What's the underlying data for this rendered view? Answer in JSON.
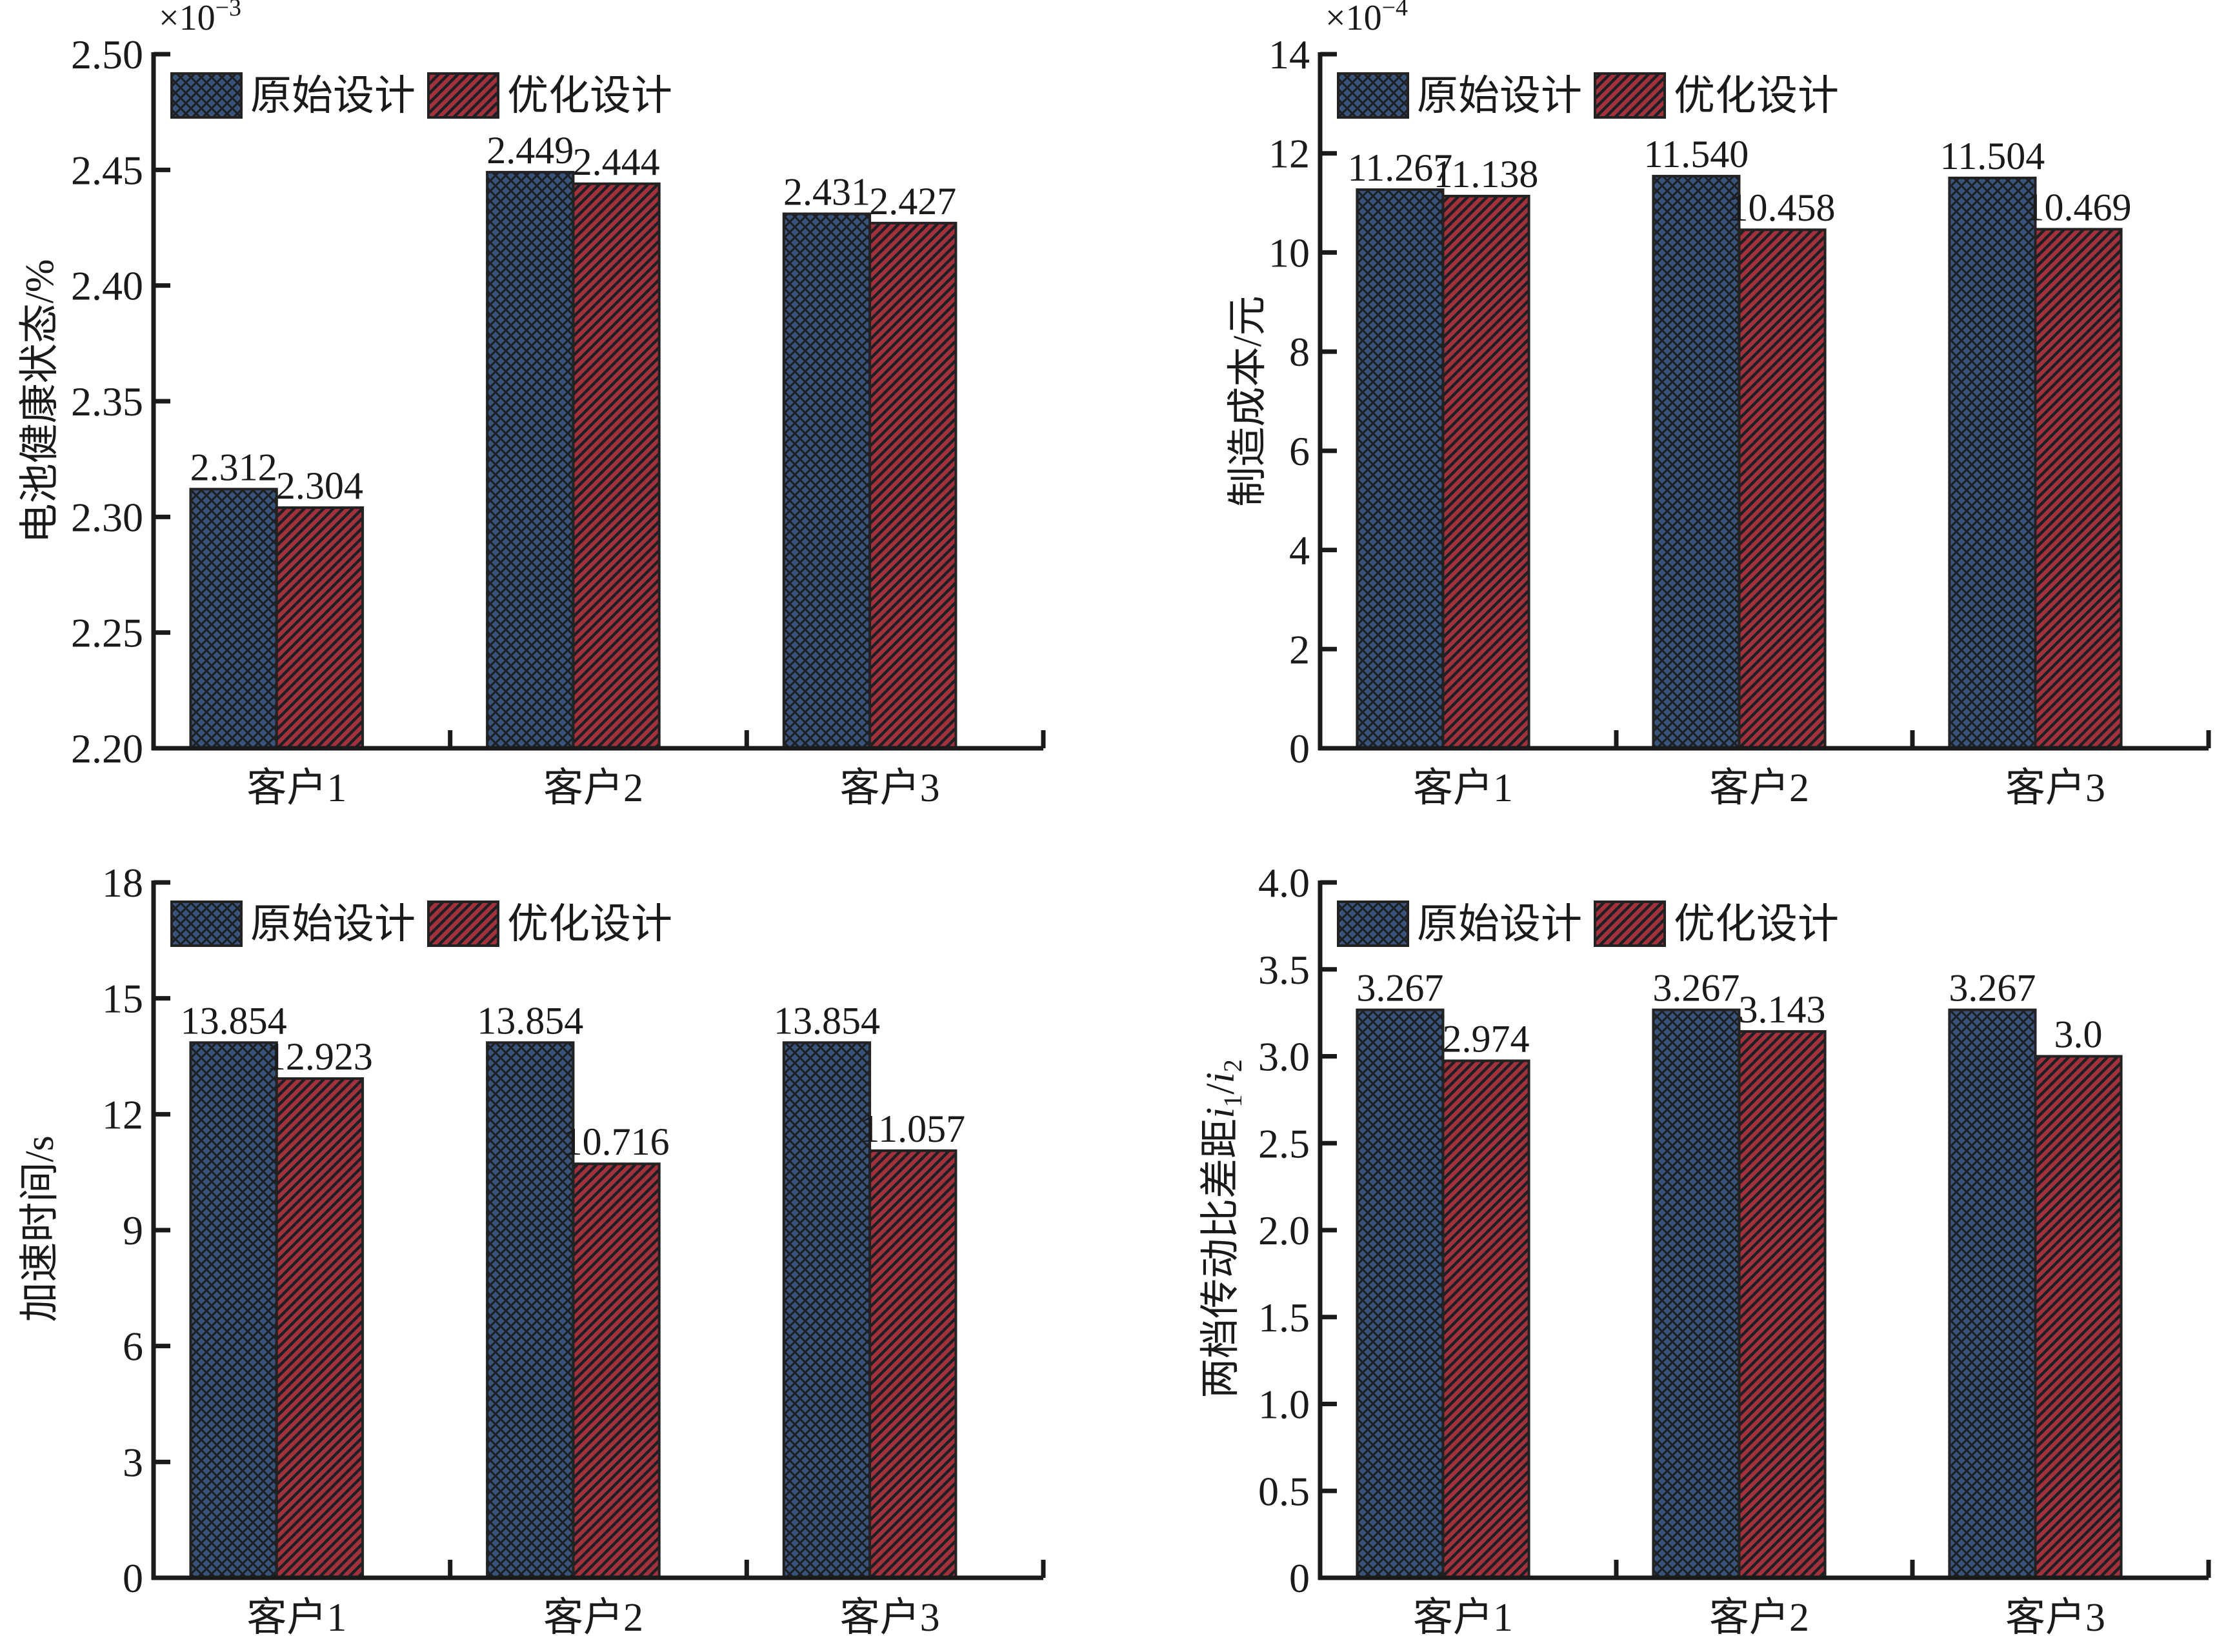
{
  "legend": {
    "original": "原始设计",
    "optimized": "优化设计"
  },
  "colors": {
    "original_fill": "#3a5378",
    "original_hatch": "#1c1f24",
    "optimized_fill": "#a3313c",
    "optimized_hatch": "#1c1f24",
    "axis": "#1a1a1a"
  },
  "chart_data": [
    {
      "type": "bar",
      "panel": "top-left",
      "title": "",
      "ylabel": "电池健康状态/%",
      "xlabel": "",
      "multiplier": "×10",
      "multiplier_exp": "-3",
      "categories": [
        "客户1",
        "客户2",
        "客户3"
      ],
      "ylim": [
        2.2,
        2.5
      ],
      "yticks": [
        2.2,
        2.25,
        2.3,
        2.35,
        2.4,
        2.45,
        2.5
      ],
      "ytick_labels": [
        "2.20",
        "2.25",
        "2.30",
        "2.35",
        "2.40",
        "2.45",
        "2.50"
      ],
      "series": [
        {
          "name": "原始设计",
          "values": [
            2.312,
            2.449,
            2.431
          ],
          "labels": [
            "2.312",
            "2.449",
            "2.431"
          ]
        },
        {
          "name": "优化设计",
          "values": [
            2.304,
            2.444,
            2.427
          ],
          "labels": [
            "2.304",
            "2.444",
            "2.427"
          ]
        }
      ],
      "legend_position": "top-left",
      "grid": false
    },
    {
      "type": "bar",
      "panel": "top-right",
      "title": "",
      "ylabel": "制造成本/元",
      "xlabel": "",
      "multiplier": "×10",
      "multiplier_exp": "-4",
      "categories": [
        "客户1",
        "客户2",
        "客户3"
      ],
      "ylim": [
        0,
        14
      ],
      "yticks": [
        0,
        2,
        4,
        6,
        8,
        10,
        12,
        14
      ],
      "ytick_labels": [
        "0",
        "2",
        "4",
        "6",
        "8",
        "10",
        "12",
        "14"
      ],
      "series": [
        {
          "name": "原始设计",
          "values": [
            11.267,
            11.54,
            11.504
          ],
          "labels": [
            "11.267",
            "11.540",
            "11.504"
          ]
        },
        {
          "name": "优化设计",
          "values": [
            11.138,
            10.458,
            10.469
          ],
          "labels": [
            "11.138",
            "10.458",
            "10.469"
          ]
        }
      ],
      "legend_position": "top-left",
      "grid": false
    },
    {
      "type": "bar",
      "panel": "bottom-left",
      "title": "",
      "ylabel": "加速时间/s",
      "xlabel": "",
      "multiplier": "",
      "multiplier_exp": "",
      "categories": [
        "客户1",
        "客户2",
        "客户3"
      ],
      "ylim": [
        0,
        18
      ],
      "yticks": [
        0,
        3,
        6,
        9,
        12,
        15,
        18
      ],
      "ytick_labels": [
        "0",
        "3",
        "6",
        "9",
        "12",
        "15",
        "18"
      ],
      "series": [
        {
          "name": "原始设计",
          "values": [
            13.854,
            13.854,
            13.854
          ],
          "labels": [
            "13.854",
            "13.854",
            "13.854"
          ]
        },
        {
          "name": "优化设计",
          "values": [
            12.923,
            10.716,
            11.057
          ],
          "labels": [
            "12.923",
            "10.716",
            "11.057"
          ]
        }
      ],
      "legend_position": "top-left",
      "grid": false
    },
    {
      "type": "bar",
      "panel": "bottom-right",
      "title": "",
      "ylabel": "两档传动比差距",
      "ylabel_math": {
        "a": "i",
        "a_sub": "1",
        "sep": "/",
        "b": "i",
        "b_sub": "2"
      },
      "xlabel": "",
      "multiplier": "",
      "multiplier_exp": "",
      "categories": [
        "客户1",
        "客户2",
        "客户3"
      ],
      "ylim": [
        0,
        4.0
      ],
      "yticks": [
        0,
        0.5,
        1.0,
        1.5,
        2.0,
        2.5,
        3.0,
        3.5,
        4.0
      ],
      "ytick_labels": [
        "0",
        "0.5",
        "1.0",
        "1.5",
        "2.0",
        "2.5",
        "3.0",
        "3.5",
        "4.0"
      ],
      "series": [
        {
          "name": "原始设计",
          "values": [
            3.267,
            3.267,
            3.267
          ],
          "labels": [
            "3.267",
            "3.267",
            "3.267"
          ]
        },
        {
          "name": "优化设计",
          "values": [
            2.974,
            3.143,
            3.0
          ],
          "labels": [
            "2.974",
            "3.143",
            "3.0"
          ]
        }
      ],
      "legend_position": "top-left",
      "grid": false
    }
  ]
}
